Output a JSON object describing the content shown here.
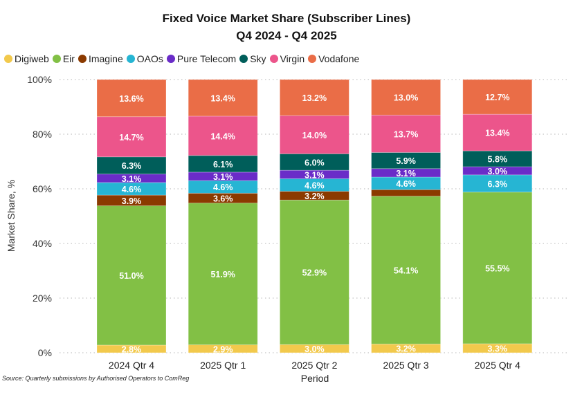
{
  "chart_data": {
    "type": "bar",
    "stacked": true,
    "title": "Fixed Voice Market Share (Subscriber Lines)",
    "subtitle": "Q4 2024 - Q4 2025",
    "xlabel": "Period",
    "ylabel": "Market Share, %",
    "ylim": [
      0,
      100
    ],
    "yticks": [
      "0%",
      "20%",
      "40%",
      "60%",
      "80%",
      "100%"
    ],
    "ytick_values": [
      0,
      20,
      40,
      60,
      80,
      100
    ],
    "grid": true,
    "legend_position": "top-left",
    "categories": [
      "2024 Qtr 4",
      "2025 Qtr 1",
      "2025 Qtr 2",
      "2025 Qtr 3",
      "2025 Qtr 4"
    ],
    "series": [
      {
        "name": "Digiweb",
        "color": "#f2c94c",
        "values": [
          2.8,
          2.9,
          3.0,
          3.2,
          3.3
        ],
        "labels": [
          "2.8%",
          "2.9%",
          "3.0%",
          "3.2%",
          "3.3%"
        ]
      },
      {
        "name": "Eir",
        "color": "#82c045",
        "values": [
          51.0,
          51.9,
          52.9,
          54.1,
          55.5
        ],
        "labels": [
          "51.0%",
          "51.9%",
          "52.9%",
          "54.1%",
          "55.5%"
        ]
      },
      {
        "name": "Imagine",
        "color": "#8b3a00",
        "values": [
          3.9,
          3.6,
          3.2,
          2.4,
          0.0
        ],
        "labels": [
          "3.9%",
          "3.6%",
          "3.2%",
          "",
          ""
        ]
      },
      {
        "name": "OAOs",
        "color": "#26b5d3",
        "values": [
          4.6,
          4.6,
          4.6,
          4.6,
          6.3
        ],
        "labels": [
          "4.6%",
          "4.6%",
          "4.6%",
          "4.6%",
          "6.3%"
        ]
      },
      {
        "name": "Pure Telecom",
        "color": "#6a2cc8",
        "values": [
          3.1,
          3.1,
          3.1,
          3.1,
          3.0
        ],
        "labels": [
          "3.1%",
          "3.1%",
          "3.1%",
          "3.1%",
          "3.0%"
        ]
      },
      {
        "name": "Sky",
        "color": "#005e5a",
        "values": [
          6.3,
          6.1,
          6.0,
          5.9,
          5.8
        ],
        "labels": [
          "6.3%",
          "6.1%",
          "6.0%",
          "5.9%",
          "5.8%"
        ]
      },
      {
        "name": "Virgin",
        "color": "#ec558b",
        "values": [
          14.7,
          14.4,
          14.0,
          13.7,
          13.4
        ],
        "labels": [
          "14.7%",
          "14.4%",
          "14.0%",
          "13.7%",
          "13.4%"
        ]
      },
      {
        "name": "Vodafone",
        "color": "#ea6d47",
        "values": [
          13.6,
          13.4,
          13.2,
          13.0,
          12.7
        ],
        "labels": [
          "13.6%",
          "13.4%",
          "13.2%",
          "13.0%",
          "12.7%"
        ]
      }
    ],
    "source": "Source: Quarterly submissions by Authorised Operators to ComReg"
  }
}
